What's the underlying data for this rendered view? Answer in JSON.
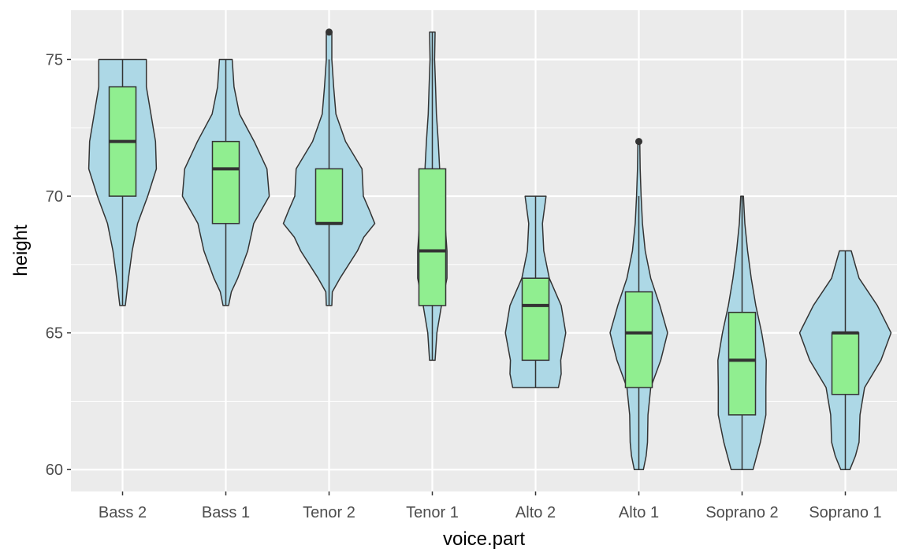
{
  "chart_data": {
    "type": "violin",
    "xlabel": "voice.part",
    "ylabel": "height",
    "categories": [
      "Bass 2",
      "Bass 1",
      "Tenor 2",
      "Tenor 1",
      "Alto 2",
      "Alto 1",
      "Soprano 2",
      "Soprano 1"
    ],
    "ylim": [
      59.2,
      76.8
    ],
    "yticks": [
      60,
      65,
      70,
      75
    ],
    "grid": true,
    "legend": "none",
    "colors": {
      "panel": "#ebebeb",
      "grid": "#ffffff",
      "violin_fill": "#add8e6",
      "box_fill": "#90ee90",
      "outline": "#333333"
    },
    "violins": [
      {
        "category": "Bass 2",
        "density": [
          [
            66,
            0.06
          ],
          [
            67,
            0.13
          ],
          [
            68,
            0.21
          ],
          [
            69,
            0.33
          ],
          [
            70,
            0.55
          ],
          [
            71,
            0.74
          ],
          [
            72,
            0.72
          ],
          [
            73,
            0.62
          ],
          [
            74,
            0.52
          ],
          [
            75,
            0.52
          ]
        ]
      },
      {
        "category": "Bass 1",
        "density": [
          [
            66,
            0.06
          ],
          [
            66.5,
            0.12
          ],
          [
            67,
            0.26
          ],
          [
            68,
            0.48
          ],
          [
            69,
            0.61
          ],
          [
            70,
            0.95
          ],
          [
            71,
            0.9
          ],
          [
            72,
            0.62
          ],
          [
            73,
            0.3
          ],
          [
            74,
            0.18
          ],
          [
            75,
            0.14
          ]
        ]
      },
      {
        "category": "Tenor 2",
        "density": [
          [
            66,
            0.06
          ],
          [
            66.5,
            0.07
          ],
          [
            67,
            0.24
          ],
          [
            68,
            0.62
          ],
          [
            68.5,
            0.76
          ],
          [
            69,
            1.0
          ],
          [
            69.5,
            0.88
          ],
          [
            70,
            0.75
          ],
          [
            71,
            0.72
          ],
          [
            72,
            0.36
          ],
          [
            73,
            0.15
          ],
          [
            74,
            0.1
          ],
          [
            75,
            0.06
          ],
          [
            76,
            0.06
          ]
        ]
      },
      {
        "category": "Tenor 1",
        "density": [
          [
            64,
            0.06
          ],
          [
            65,
            0.1
          ],
          [
            66,
            0.2
          ],
          [
            67,
            0.32
          ],
          [
            68,
            0.32
          ],
          [
            69,
            0.28
          ],
          [
            70,
            0.22
          ],
          [
            71,
            0.16
          ],
          [
            72,
            0.13
          ],
          [
            73,
            0.09
          ],
          [
            74,
            0.07
          ],
          [
            75,
            0.05
          ],
          [
            76,
            0.06
          ]
        ]
      },
      {
        "category": "Alto 2",
        "density": [
          [
            63,
            0.5
          ],
          [
            63.5,
            0.56
          ],
          [
            64,
            0.55
          ],
          [
            65,
            0.66
          ],
          [
            66,
            0.56
          ],
          [
            67,
            0.3
          ],
          [
            68,
            0.18
          ],
          [
            69,
            0.15
          ],
          [
            70,
            0.23
          ]
        ]
      },
      {
        "category": "Alto 1",
        "density": [
          [
            60,
            0.1
          ],
          [
            60.5,
            0.16
          ],
          [
            61,
            0.19
          ],
          [
            62,
            0.2
          ],
          [
            63,
            0.26
          ],
          [
            64,
            0.48
          ],
          [
            65,
            0.63
          ],
          [
            66,
            0.46
          ],
          [
            67,
            0.26
          ],
          [
            68,
            0.14
          ],
          [
            69,
            0.08
          ],
          [
            70,
            0.05
          ],
          [
            71,
            0.03
          ],
          [
            72,
            0.02
          ]
        ]
      },
      {
        "category": "Soprano 2",
        "density": [
          [
            60,
            0.24
          ],
          [
            61,
            0.4
          ],
          [
            62,
            0.52
          ],
          [
            63,
            0.52
          ],
          [
            64,
            0.53
          ],
          [
            65,
            0.43
          ],
          [
            66,
            0.3
          ],
          [
            67,
            0.2
          ],
          [
            68,
            0.12
          ],
          [
            69,
            0.06
          ],
          [
            70,
            0.03
          ]
        ]
      },
      {
        "category": "Soprano 1",
        "density": [
          [
            60,
            0.1
          ],
          [
            60.5,
            0.22
          ],
          [
            61,
            0.3
          ],
          [
            62,
            0.32
          ],
          [
            63,
            0.42
          ],
          [
            64,
            0.78
          ],
          [
            65,
            1.0
          ],
          [
            66,
            0.7
          ],
          [
            67,
            0.3
          ],
          [
            68,
            0.13
          ]
        ]
      }
    ],
    "boxplots": [
      {
        "category": "Bass 2",
        "lower": 66,
        "q1": 70,
        "median": 72,
        "q3": 74,
        "upper": 75,
        "outliers": []
      },
      {
        "category": "Bass 1",
        "lower": 66,
        "q1": 69,
        "median": 71,
        "q3": 72,
        "upper": 75,
        "outliers": []
      },
      {
        "category": "Tenor 2",
        "lower": 66,
        "q1": 69,
        "median": 69,
        "q3": 71,
        "upper": 75,
        "outliers": [
          76
        ]
      },
      {
        "category": "Tenor 1",
        "lower": 64,
        "q1": 66,
        "median": 68,
        "q3": 71,
        "upper": 76,
        "outliers": []
      },
      {
        "category": "Alto 2",
        "lower": 63,
        "q1": 64,
        "median": 66,
        "q3": 67,
        "upper": 70,
        "outliers": []
      },
      {
        "category": "Alto 1",
        "lower": 60,
        "q1": 63,
        "median": 65,
        "q3": 66.5,
        "upper": 70,
        "outliers": [
          72
        ]
      },
      {
        "category": "Soprano 2",
        "lower": 60,
        "q1": 62,
        "median": 64,
        "q3": 65.75,
        "upper": 70,
        "outliers": []
      },
      {
        "category": "Soprano 1",
        "lower": 60,
        "q1": 62.75,
        "median": 65,
        "q3": 65,
        "upper": 68,
        "outliers": []
      }
    ]
  }
}
